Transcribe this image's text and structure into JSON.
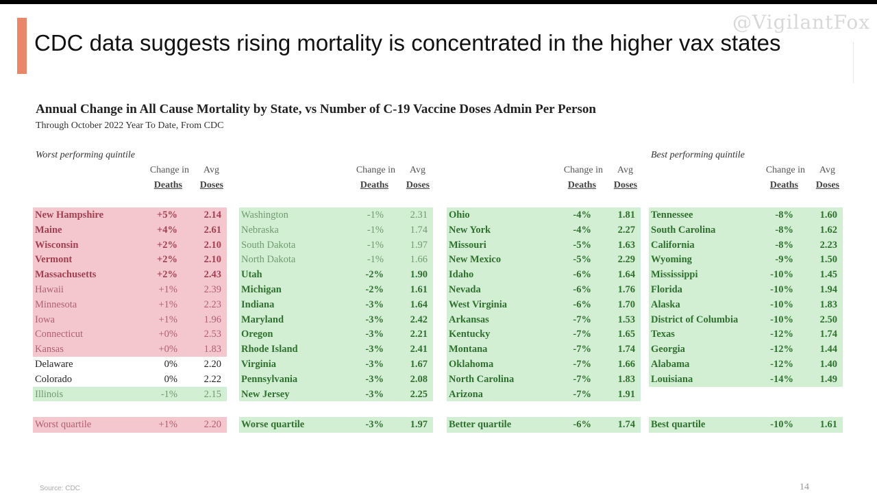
{
  "slide": {
    "title": "CDC data suggests rising mortality is concentrated in the higher vax states",
    "watermark": "@VigilantFox",
    "subtitle": "Annual Change in All Cause Mortality by State, vs Number of C-19 Vaccine Doses Admin Per Person",
    "subsubtitle": "Through October 2022 Year To Date, From CDC",
    "worst_label": "Worst performing quintile",
    "best_label": "Best performing quintile",
    "hdr_change": "Change in",
    "hdr_avg": "Avg",
    "hdr_deaths": "Deaths",
    "hdr_doses": "Doses",
    "source": "Source: CDC",
    "page": "14"
  },
  "columns": [
    {
      "rows": [
        {
          "state": "New Hampshire",
          "change": "+5%",
          "doses": "2.14",
          "style": "pink",
          "bold": true
        },
        {
          "state": "Maine",
          "change": "+4%",
          "doses": "2.61",
          "style": "pink",
          "bold": true
        },
        {
          "state": "Wisconsin",
          "change": "+2%",
          "doses": "2.10",
          "style": "pink",
          "bold": true
        },
        {
          "state": "Vermont",
          "change": "+2%",
          "doses": "2.10",
          "style": "pink",
          "bold": true
        },
        {
          "state": "Massachusetts",
          "change": "+2%",
          "doses": "2.43",
          "style": "pink",
          "bold": true
        },
        {
          "state": "Hawaii",
          "change": "+1%",
          "doses": "2.39",
          "style": "pink",
          "bold": false
        },
        {
          "state": "Minnesota",
          "change": "+1%",
          "doses": "2.23",
          "style": "pink",
          "bold": false
        },
        {
          "state": "Iowa",
          "change": "+1%",
          "doses": "1.96",
          "style": "pink",
          "bold": false
        },
        {
          "state": "Connecticut",
          "change": "+0%",
          "doses": "2.53",
          "style": "pink",
          "bold": false
        },
        {
          "state": "Kansas",
          "change": "+0%",
          "doses": "1.83",
          "style": "pink",
          "bold": false
        },
        {
          "state": "Delaware",
          "change": "0%",
          "doses": "2.20",
          "style": "wht",
          "bold": false
        },
        {
          "state": "Colorado",
          "change": "0%",
          "doses": "2.22",
          "style": "wht",
          "bold": false
        },
        {
          "state": "Illinois",
          "change": "-1%",
          "doses": "2.15",
          "style": "green",
          "bold": false
        }
      ],
      "summary": {
        "label": "Worst quartile",
        "change": "+1%",
        "doses": "2.20",
        "style": "pink",
        "bold": false
      }
    },
    {
      "rows": [
        {
          "state": "Washington",
          "change": "-1%",
          "doses": "2.31",
          "style": "green",
          "bold": false
        },
        {
          "state": "Nebraska",
          "change": "-1%",
          "doses": "1.74",
          "style": "green",
          "bold": false
        },
        {
          "state": "South Dakota",
          "change": "-1%",
          "doses": "1.97",
          "style": "green",
          "bold": false
        },
        {
          "state": "North Dakota",
          "change": "-1%",
          "doses": "1.66",
          "style": "green",
          "bold": false
        },
        {
          "state": "Utah",
          "change": "-2%",
          "doses": "1.90",
          "style": "green",
          "bold": true
        },
        {
          "state": "Michigan",
          "change": "-2%",
          "doses": "1.61",
          "style": "green",
          "bold": true
        },
        {
          "state": "Indiana",
          "change": "-3%",
          "doses": "1.64",
          "style": "green",
          "bold": true
        },
        {
          "state": "Maryland",
          "change": "-3%",
          "doses": "2.42",
          "style": "green",
          "bold": true
        },
        {
          "state": "Oregon",
          "change": "-3%",
          "doses": "2.21",
          "style": "green",
          "bold": true
        },
        {
          "state": "Rhode Island",
          "change": "-3%",
          "doses": "2.41",
          "style": "green",
          "bold": true
        },
        {
          "state": "Virginia",
          "change": "-3%",
          "doses": "1.67",
          "style": "green",
          "bold": true
        },
        {
          "state": "Pennsylvania",
          "change": "-3%",
          "doses": "2.08",
          "style": "green",
          "bold": true
        },
        {
          "state": "New Jersey",
          "change": "-3%",
          "doses": "2.25",
          "style": "green",
          "bold": true
        }
      ],
      "summary": {
        "label": "Worse quartile",
        "change": "-3%",
        "doses": "1.97",
        "style": "green",
        "bold": true
      }
    },
    {
      "rows": [
        {
          "state": "Ohio",
          "change": "-4%",
          "doses": "1.81",
          "style": "green",
          "bold": true
        },
        {
          "state": "New York",
          "change": "-4%",
          "doses": "2.27",
          "style": "green",
          "bold": true
        },
        {
          "state": "Missouri",
          "change": "-5%",
          "doses": "1.63",
          "style": "green",
          "bold": true
        },
        {
          "state": "New Mexico",
          "change": "-5%",
          "doses": "2.29",
          "style": "green",
          "bold": true
        },
        {
          "state": "Idaho",
          "change": "-6%",
          "doses": "1.64",
          "style": "green",
          "bold": true
        },
        {
          "state": "Nevada",
          "change": "-6%",
          "doses": "1.76",
          "style": "green",
          "bold": true
        },
        {
          "state": "West Virginia",
          "change": "-6%",
          "doses": "1.70",
          "style": "green",
          "bold": true
        },
        {
          "state": "Arkansas",
          "change": "-7%",
          "doses": "1.53",
          "style": "green",
          "bold": true
        },
        {
          "state": "Kentucky",
          "change": "-7%",
          "doses": "1.65",
          "style": "green",
          "bold": true
        },
        {
          "state": "Montana",
          "change": "-7%",
          "doses": "1.74",
          "style": "green",
          "bold": true
        },
        {
          "state": "Oklahoma",
          "change": "-7%",
          "doses": "1.66",
          "style": "green",
          "bold": true
        },
        {
          "state": "North Carolina",
          "change": "-7%",
          "doses": "1.83",
          "style": "green",
          "bold": true
        },
        {
          "state": "Arizona",
          "change": "-7%",
          "doses": "1.91",
          "style": "green",
          "bold": true
        }
      ],
      "summary": {
        "label": "Better quartile",
        "change": "-6%",
        "doses": "1.74",
        "style": "green",
        "bold": true
      }
    },
    {
      "rows": [
        {
          "state": "Tennessee",
          "change": "-8%",
          "doses": "1.60",
          "style": "green",
          "bold": true
        },
        {
          "state": "South Carolina",
          "change": "-8%",
          "doses": "1.62",
          "style": "green",
          "bold": true
        },
        {
          "state": "California",
          "change": "-8%",
          "doses": "2.23",
          "style": "green",
          "bold": true
        },
        {
          "state": "Wyoming",
          "change": "-9%",
          "doses": "1.50",
          "style": "green",
          "bold": true
        },
        {
          "state": "Mississippi",
          "change": "-10%",
          "doses": "1.45",
          "style": "green",
          "bold": true
        },
        {
          "state": "Florida",
          "change": "-10%",
          "doses": "1.94",
          "style": "green",
          "bold": true
        },
        {
          "state": "Alaska",
          "change": "-10%",
          "doses": "1.83",
          "style": "green",
          "bold": true
        },
        {
          "state": "District of Columbia",
          "change": "-10%",
          "doses": "2.50",
          "style": "green",
          "bold": true
        },
        {
          "state": "Texas",
          "change": "-12%",
          "doses": "1.74",
          "style": "green",
          "bold": true
        },
        {
          "state": "Georgia",
          "change": "-12%",
          "doses": "1.44",
          "style": "green",
          "bold": true
        },
        {
          "state": "Alabama",
          "change": "-12%",
          "doses": "1.40",
          "style": "green",
          "bold": true
        },
        {
          "state": "Louisiana",
          "change": "-14%",
          "doses": "1.49",
          "style": "green",
          "bold": true
        }
      ],
      "summary": {
        "label": "Best quartile",
        "change": "-10%",
        "doses": "1.61",
        "style": "green",
        "bold": true
      }
    }
  ]
}
